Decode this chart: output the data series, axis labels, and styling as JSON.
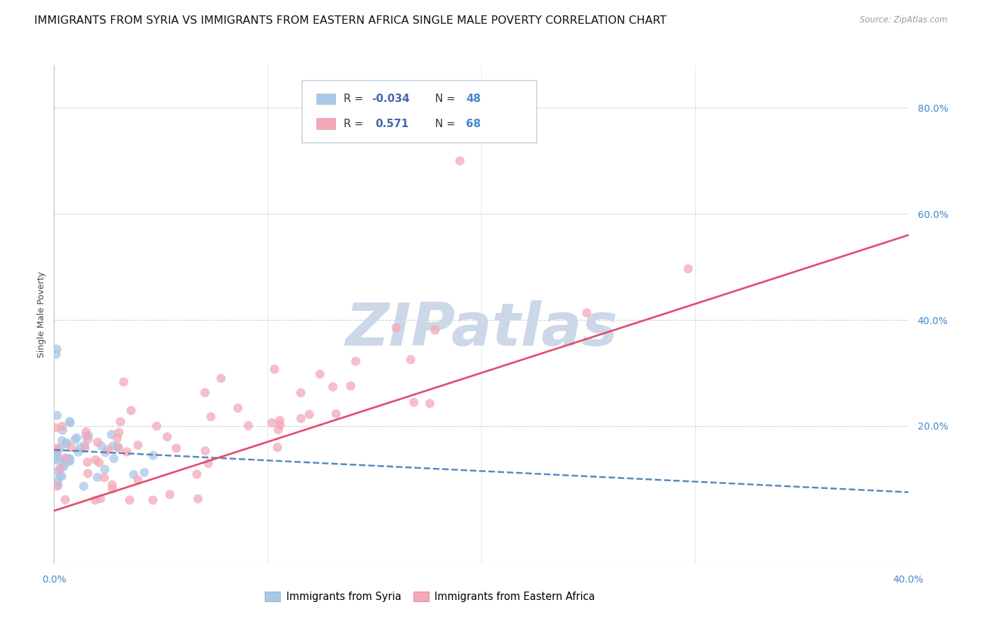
{
  "title": "IMMIGRANTS FROM SYRIA VS IMMIGRANTS FROM EASTERN AFRICA SINGLE MALE POVERTY CORRELATION CHART",
  "source": "Source: ZipAtlas.com",
  "ylabel": "Single Male Poverty",
  "ytick_labels": [
    "80.0%",
    "60.0%",
    "40.0%",
    "20.0%"
  ],
  "ytick_values": [
    0.8,
    0.6,
    0.4,
    0.2
  ],
  "xlim": [
    0.0,
    0.4
  ],
  "ylim": [
    -0.06,
    0.88
  ],
  "syria_color": "#a8c8e8",
  "africa_color": "#f4a8b8",
  "syria_line_color": "#5588bb",
  "africa_line_color": "#e05070",
  "R_syria": -0.034,
  "N_syria": 48,
  "R_africa": 0.571,
  "N_africa": 68,
  "background_color": "#ffffff",
  "grid_color": "#cccccc",
  "watermark_text": "ZIPatlas",
  "watermark_color": "#ccd8e8",
  "title_fontsize": 11.5,
  "axis_label_fontsize": 9,
  "tick_label_fontsize": 10,
  "legend_r_color": "#4466aa",
  "legend_n_color": "#4488cc",
  "legend_text_color": "#333333"
}
